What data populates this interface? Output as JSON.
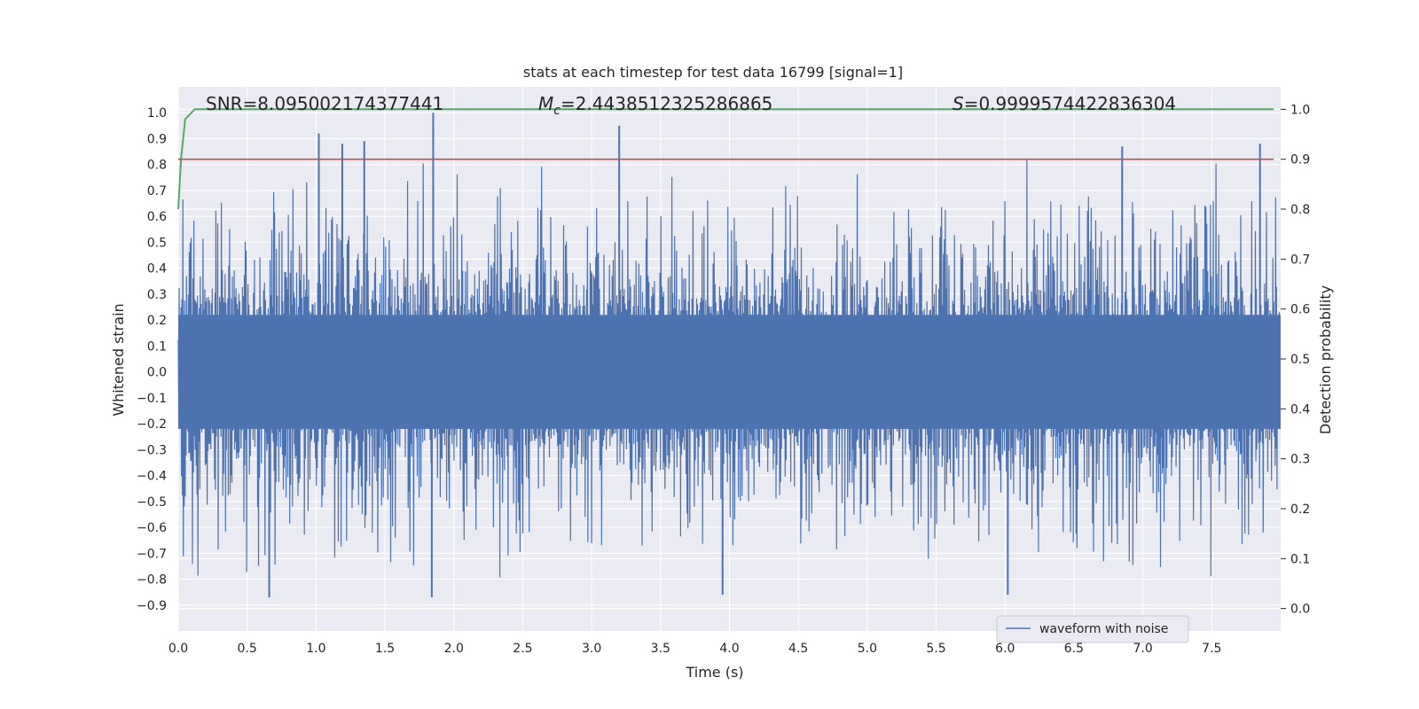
{
  "chart_data": {
    "type": "line",
    "title": "stats at each timestep for test data 16799 [signal=1]",
    "xlabel": "Time (s)",
    "ylabel_left": "Whitened strain",
    "ylabel_right": "Detection probability",
    "xlim": [
      0.0,
      8.0
    ],
    "ylim_left": [
      -1.0,
      1.1
    ],
    "ylim_right": [
      -0.045,
      1.045
    ],
    "x_ticks": [
      "0.0",
      "0.5",
      "1.0",
      "1.5",
      "2.0",
      "2.5",
      "3.0",
      "3.5",
      "4.0",
      "4.5",
      "5.0",
      "5.5",
      "6.0",
      "6.5",
      "7.0",
      "7.5"
    ],
    "y_left_ticks": [
      "-0.9",
      "-0.8",
      "-0.7",
      "-0.6",
      "-0.5",
      "-0.4",
      "-0.3",
      "-0.2",
      "-0.1",
      "0.0",
      "0.1",
      "0.2",
      "0.3",
      "0.4",
      "0.5",
      "0.6",
      "0.7",
      "0.8",
      "0.9",
      "1.0"
    ],
    "y_right_ticks": [
      "0.0",
      "0.1",
      "0.2",
      "0.3",
      "0.4",
      "0.5",
      "0.6",
      "0.7",
      "0.8",
      "0.9",
      "1.0"
    ],
    "annotations": {
      "snr": "SNR=8.095002174377441",
      "mc_symbol": "M",
      "mc_sub": "c",
      "mc_value": "=2.4438512325286865",
      "s_symbol": "S",
      "s_value": "=0.9999574422836304"
    },
    "grid": true,
    "legend": {
      "placement": "lower center-right",
      "entries": [
        "waveform with noise"
      ]
    },
    "colors": {
      "waveform": "#4c72b0",
      "probability": "#55a868",
      "threshold": "#c44e52",
      "background": "#eaeaf2",
      "grid": "#ffffff"
    },
    "series": [
      {
        "name": "waveform with noise",
        "axis": "left",
        "description_values": "dense noise in roughly [-0.87, 1.0]",
        "envelope_peaks": [
          {
            "x": 1.02,
            "y": 0.92
          },
          {
            "x": 1.19,
            "y": 0.88
          },
          {
            "x": 1.35,
            "y": 0.89
          },
          {
            "x": 1.85,
            "y": 1.0
          },
          {
            "x": 3.2,
            "y": 0.95
          },
          {
            "x": 6.85,
            "y": 0.87
          },
          {
            "x": 7.85,
            "y": 0.88
          }
        ],
        "envelope_troughs": [
          {
            "x": 0.66,
            "y": -0.87
          },
          {
            "x": 1.84,
            "y": -0.87
          },
          {
            "x": 3.95,
            "y": -0.86
          },
          {
            "x": 6.02,
            "y": -0.86
          }
        ]
      },
      {
        "name": "",
        "axis": "right",
        "x": [
          0.0,
          0.02,
          0.05,
          0.12,
          7.95
        ],
        "values": [
          0.8,
          0.9,
          0.98,
          1.0,
          1.0
        ]
      },
      {
        "name": "",
        "axis": "right",
        "x": [
          0.0,
          7.95
        ],
        "values": [
          0.9,
          0.9
        ]
      }
    ]
  }
}
